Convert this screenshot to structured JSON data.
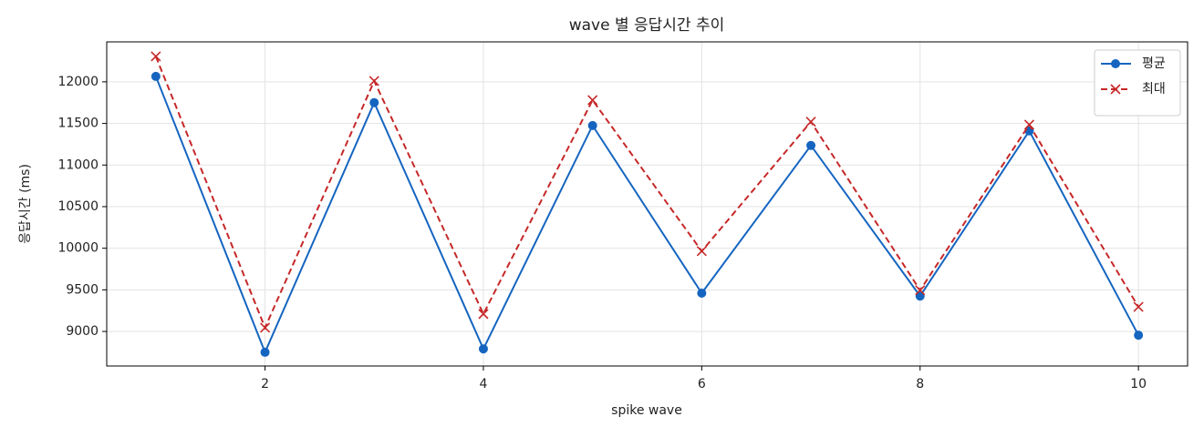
{
  "chart_data": {
    "type": "line",
    "title": "wave 별 응답시간 추이",
    "xlabel": "spike wave",
    "ylabel": "응답시간 (ms)",
    "x": [
      1,
      2,
      3,
      4,
      5,
      6,
      7,
      8,
      9,
      10
    ],
    "series": [
      {
        "name": "평균",
        "color": "#1565c0",
        "marker": "o",
        "linestyle": "solid",
        "values": [
          12065,
          8750,
          11750,
          8790,
          11475,
          9460,
          11235,
          9425,
          11410,
          8955
        ]
      },
      {
        "name": "최대",
        "color": "#c62828",
        "marker": "x",
        "linestyle": "dashed",
        "values": [
          12305,
          9045,
          12010,
          9210,
          11780,
          9965,
          11520,
          9495,
          11485,
          9295
        ]
      }
    ],
    "xlim": [
      0.55,
      10.45
    ],
    "xticks": [
      2,
      4,
      6,
      8,
      10
    ],
    "ylim": [
      8585,
      12480
    ],
    "yticks": [
      9000,
      9500,
      10000,
      10500,
      11000,
      11500,
      12000
    ],
    "grid": true,
    "legend": "upper right"
  }
}
